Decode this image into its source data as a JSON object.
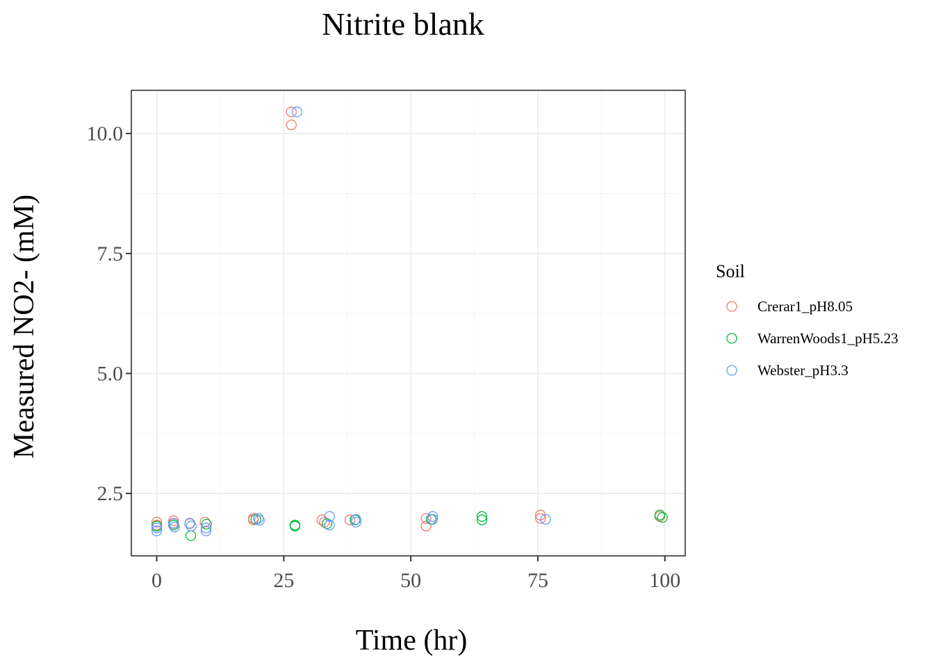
{
  "chart_data": {
    "type": "scatter",
    "title": "Nitrite blank",
    "xlabel": "Time (hr)",
    "ylabel": "Measured NO2- (mM)",
    "xlim": [
      -5,
      104
    ],
    "ylim": [
      1.2,
      10.9
    ],
    "x_ticks": [
      {
        "value": 0,
        "label": "0"
      },
      {
        "value": 25,
        "label": "25"
      },
      {
        "value": 50,
        "label": "50"
      },
      {
        "value": 75,
        "label": "75"
      },
      {
        "value": 100,
        "label": "100"
      }
    ],
    "y_ticks": [
      {
        "value": 2.5,
        "label": "2.5"
      },
      {
        "value": 5.0,
        "label": "5.0"
      },
      {
        "value": 7.5,
        "label": "7.5"
      },
      {
        "value": 10.0,
        "label": "10.0"
      }
    ],
    "grid": true,
    "marker": "open-circle",
    "legend": {
      "title": "Soil",
      "position": "right"
    },
    "series": [
      {
        "name": "Crerar1_pH8.05",
        "color": "#F8766D",
        "points": [
          [
            0,
            1.9
          ],
          [
            0,
            1.84
          ],
          [
            3.3,
            1.93
          ],
          [
            3.3,
            1.87
          ],
          [
            6.5,
            1.87
          ],
          [
            9.5,
            1.9
          ],
          [
            19,
            1.98
          ],
          [
            19,
            1.95
          ],
          [
            26.5,
            10.45
          ],
          [
            26.5,
            10.18
          ],
          [
            32.5,
            1.95
          ],
          [
            33,
            1.9
          ],
          [
            38,
            1.95
          ],
          [
            53,
            1.98
          ],
          [
            53,
            1.82
          ],
          [
            75.5,
            2.05
          ],
          [
            75.5,
            1.98
          ],
          [
            99,
            2.02
          ]
        ]
      },
      {
        "name": "WarrenWoods1_pH5.23",
        "color": "#00BA38",
        "points": [
          [
            0,
            1.82
          ],
          [
            3.3,
            1.84
          ],
          [
            6.7,
            1.62
          ],
          [
            9.8,
            1.86
          ],
          [
            19.5,
            1.96
          ],
          [
            27.2,
            1.84
          ],
          [
            27.2,
            1.82
          ],
          [
            33.5,
            1.87
          ],
          [
            39,
            1.95
          ],
          [
            54,
            1.96
          ],
          [
            64,
            2.02
          ],
          [
            64,
            1.95
          ],
          [
            99,
            2.05
          ],
          [
            99.5,
            2.0
          ]
        ]
      },
      {
        "name": "Webster_pH3.3",
        "color": "#619CFF",
        "points": [
          [
            0,
            1.78
          ],
          [
            0,
            1.72
          ],
          [
            3.3,
            1.88
          ],
          [
            3.5,
            1.8
          ],
          [
            6.5,
            1.88
          ],
          [
            6.8,
            1.82
          ],
          [
            9.7,
            1.78
          ],
          [
            9.7,
            1.72
          ],
          [
            20,
            1.98
          ],
          [
            20.2,
            1.94
          ],
          [
            27.6,
            10.45
          ],
          [
            34,
            2.02
          ],
          [
            34,
            1.84
          ],
          [
            39.2,
            1.96
          ],
          [
            39.2,
            1.9
          ],
          [
            54.3,
            2.02
          ],
          [
            54.3,
            1.96
          ],
          [
            76.5,
            1.96
          ]
        ]
      }
    ]
  }
}
